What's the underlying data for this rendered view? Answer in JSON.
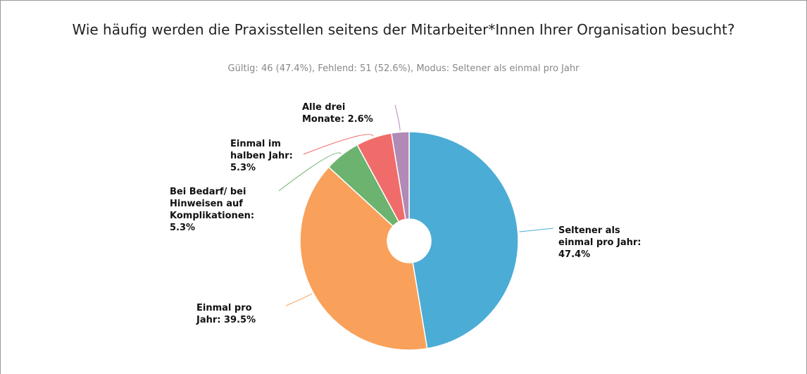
{
  "chart_data": {
    "type": "pie",
    "title": "Wie häufig werden die Praxisstellen seitens der Mitarbeiter*Innen Ihrer Organisation besucht?",
    "subtitle": "Gültig: 46 (47.4%), Fehlend: 51 (52.6%), Modus: Seltener als einmal pro Jahr",
    "categories": [
      "Seltener als einmal pro Jahr",
      "Einmal pro Jahr",
      "Bei Bedarf/ bei Hinweisen auf Komplikationen",
      "Einmal im halben Jahr",
      "Alle drei Monate"
    ],
    "values": [
      47.4,
      39.5,
      5.3,
      5.3,
      2.6
    ],
    "value_labels": [
      "47.4%",
      "39.5%",
      "5.3%",
      "5.3%",
      "2.6%"
    ],
    "colors": [
      "#4bacd6",
      "#f9a15a",
      "#6bb36f",
      "#f06c6a",
      "#b18ab5"
    ]
  }
}
